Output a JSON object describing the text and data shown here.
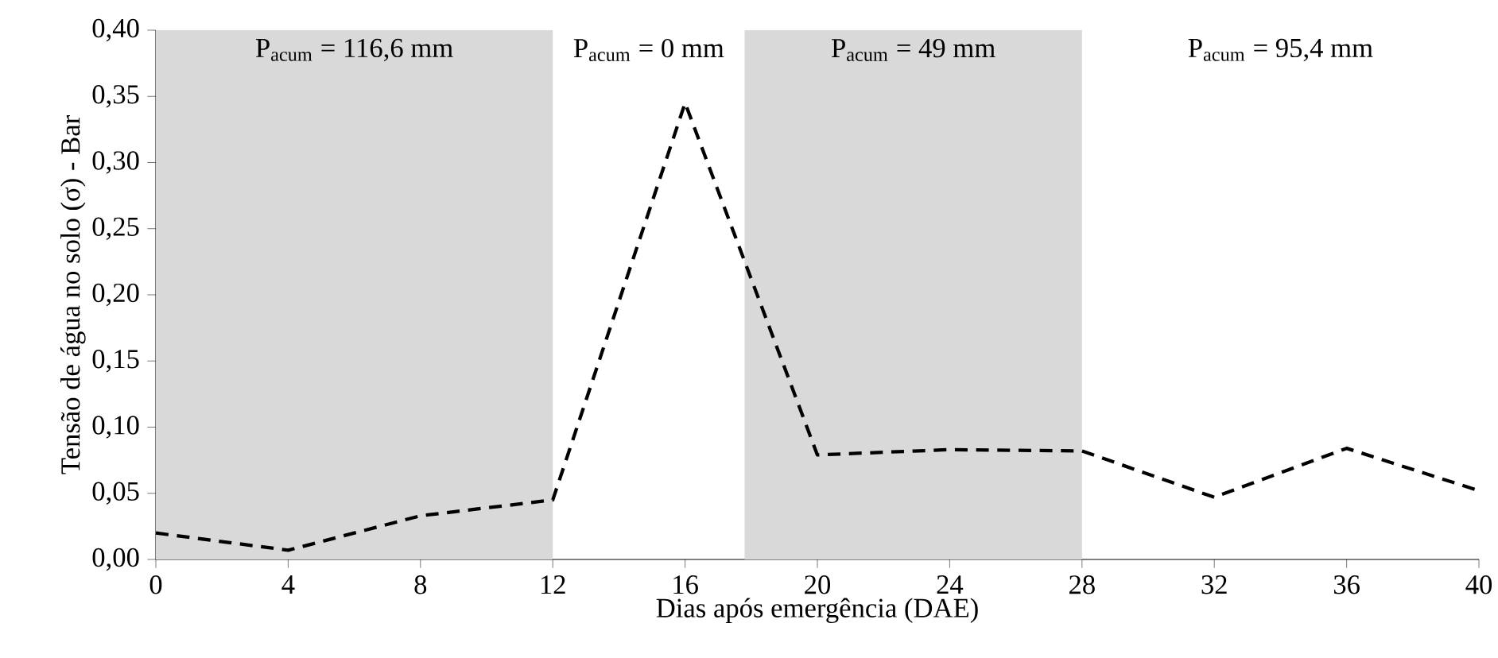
{
  "chart_data": {
    "type": "line",
    "xlabel": "Dias após emergência (DAE)",
    "ylabel": "Tensão de água no solo (σ) - Bar",
    "x": [
      0,
      4,
      8,
      12,
      16,
      20,
      24,
      28,
      32,
      36,
      40
    ],
    "series": [
      {
        "color": "#000000",
        "line_style": "dashed",
        "values": [
          0.02,
          0.007,
          0.033,
          0.045,
          0.345,
          0.079,
          0.083,
          0.082,
          0.047,
          0.084,
          0.052
        ]
      }
    ],
    "xlim": [
      0,
      40
    ],
    "xticks": [
      0,
      4,
      8,
      12,
      16,
      20,
      24,
      28,
      32,
      36,
      40
    ],
    "ylim": [
      0,
      0.4
    ],
    "yticks": [
      {
        "value": 0,
        "label": "0,00"
      },
      {
        "value": 0.05,
        "label": "0,05"
      },
      {
        "value": 0.1,
        "label": "0,10"
      },
      {
        "value": 0.15,
        "label": "0,15"
      },
      {
        "value": 0.2,
        "label": "0,20"
      },
      {
        "value": 0.25,
        "label": "0,25"
      },
      {
        "value": 0.3,
        "label": "0,30"
      },
      {
        "value": 0.35,
        "label": "0,35"
      },
      {
        "value": 0.4,
        "label": "0,40"
      }
    ],
    "bands": [
      {
        "axis": "x",
        "from": 0,
        "to": 12,
        "label": "P$_{acum}$ = 116,6 mm",
        "color": "#d9d9d9"
      },
      {
        "axis": "x",
        "from": 17.8,
        "to": 28,
        "label": "P$_{acum}$ = 49 mm",
        "color": "#d9d9d9"
      }
    ],
    "annotations": [
      "P$_{acum}$ = 0 mm",
      "P$_{acum}$ = 95,4 mm"
    ],
    "grid": false
  }
}
